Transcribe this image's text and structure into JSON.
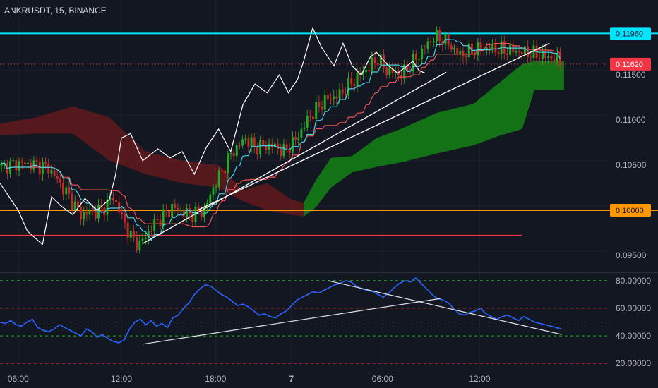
{
  "header": {
    "symbol": "ANKRUSDT",
    "interval": "15",
    "exchange": "BINANCE"
  },
  "chart_data": [
    {
      "type": "candlestick",
      "yticks": [
        "0.11500",
        "0.11000",
        "0.10500",
        "0.09500"
      ],
      "ylim": [
        0.0932,
        0.1233
      ],
      "xticks": [
        "06:00",
        "12:00",
        "18:00",
        "7",
        "06:00",
        "12:00"
      ],
      "price_labels": [
        {
          "text": "0.11960",
          "value": 0.1196,
          "color": "#00e5ff",
          "text_color": "#131722"
        },
        {
          "text": "0.11620",
          "value": 0.1162,
          "color": "#f23645",
          "text_color": "#ffffff"
        },
        {
          "text": "0.10000",
          "value": 0.1,
          "color": "#ff9800",
          "text_color": "#131722"
        }
      ],
      "levels": [
        {
          "name": "resistance",
          "value": 0.1196,
          "color": "#00e5ff"
        },
        {
          "name": "support",
          "value": 0.1,
          "color": "#ff9800"
        },
        {
          "name": "low-line",
          "value": 0.0972,
          "color": "#f23645",
          "x_end": 0.86
        }
      ],
      "anchors": [
        [
          0,
          0.1048
        ],
        [
          6,
          0.1052
        ],
        [
          12,
          0.105
        ],
        [
          16,
          0.1047
        ],
        [
          22,
          0.102
        ],
        [
          27,
          0.0995
        ],
        [
          34,
          0.1
        ],
        [
          38,
          0.1015
        ],
        [
          44,
          0.097
        ],
        [
          47,
          0.0962
        ],
        [
          52,
          0.0985
        ],
        [
          58,
          0.1003
        ],
        [
          64,
          0.0995
        ],
        [
          69,
          0.1
        ],
        [
          72,
          0.1025
        ],
        [
          78,
          0.1062
        ],
        [
          83,
          0.108
        ],
        [
          86,
          0.107
        ],
        [
          92,
          0.1072
        ],
        [
          96,
          0.1065
        ],
        [
          100,
          0.1078
        ],
        [
          105,
          0.1105
        ],
        [
          110,
          0.1122
        ],
        [
          115,
          0.1128
        ],
        [
          122,
          0.115
        ],
        [
          128,
          0.1168
        ],
        [
          131,
          0.1155
        ],
        [
          136,
          0.115
        ],
        [
          141,
          0.1168
        ],
        [
          147,
          0.1192
        ],
        [
          150,
          0.119
        ],
        [
          156,
          0.1172
        ],
        [
          163,
          0.118
        ],
        [
          170,
          0.1178
        ],
        [
          178,
          0.1175
        ],
        [
          186,
          0.117
        ],
        [
          190,
          0.1165
        ]
      ],
      "trendlines": [
        {
          "from": [
            0.235,
            0.0963
          ],
          "to": [
            0.735,
            0.1153
          ],
          "color": "#ffffff"
        },
        {
          "from": [
            0.325,
            0.1
          ],
          "to": [
            0.905,
            0.1185
          ],
          "color": "#ffffff"
        }
      ],
      "white_line": [
        [
          0,
          0.103
        ],
        [
          0.03,
          0.1
        ],
        [
          0.045,
          0.0977
        ],
        [
          0.07,
          0.0962
        ],
        [
          0.085,
          0.1015
        ],
        [
          0.1,
          0.1005
        ],
        [
          0.12,
          0.0995
        ],
        [
          0.14,
          0.1013
        ],
        [
          0.16,
          0.1
        ],
        [
          0.18,
          0.1012
        ],
        [
          0.19,
          0.1038
        ],
        [
          0.2,
          0.108
        ],
        [
          0.215,
          0.1085
        ],
        [
          0.235,
          0.1055
        ],
        [
          0.26,
          0.1068
        ],
        [
          0.28,
          0.1058
        ],
        [
          0.3,
          0.1065
        ],
        [
          0.32,
          0.104
        ],
        [
          0.34,
          0.107
        ],
        [
          0.36,
          0.109
        ],
        [
          0.38,
          0.1065
        ],
        [
          0.4,
          0.1117
        ],
        [
          0.42,
          0.114
        ],
        [
          0.44,
          0.113
        ],
        [
          0.46,
          0.115
        ],
        [
          0.475,
          0.113
        ],
        [
          0.49,
          0.1145
        ],
        [
          0.5,
          0.1165
        ],
        [
          0.515,
          0.1202
        ],
        [
          0.53,
          0.118
        ],
        [
          0.55,
          0.116
        ],
        [
          0.565,
          0.1185
        ],
        [
          0.58,
          0.116
        ],
        [
          0.595,
          0.115
        ],
        [
          0.61,
          0.117
        ],
        [
          0.62,
          0.1175
        ],
        [
          0.64,
          0.116
        ],
        [
          0.655,
          0.1152
        ],
        [
          0.68,
          0.1165
        ],
        [
          0.69,
          0.1155
        ],
        [
          0.7,
          0.1152
        ]
      ],
      "cloud": [
        [
          0.0,
          0.1096,
          0.1083
        ],
        [
          0.06,
          0.1103,
          0.1085
        ],
        [
          0.12,
          0.1115,
          0.1085
        ],
        [
          0.18,
          0.1103,
          0.1055
        ],
        [
          0.24,
          0.1065,
          0.104
        ],
        [
          0.3,
          0.1055,
          0.103
        ],
        [
          0.36,
          0.105,
          0.1025
        ],
        [
          0.4,
          0.1022,
          0.101
        ],
        [
          0.44,
          0.103,
          0.1
        ],
        [
          0.48,
          0.1012,
          0.0995
        ],
        [
          0.5,
          0.1008,
          0.0993
        ],
        [
          0.52,
          0.1033,
          0.1003
        ],
        [
          0.545,
          0.1058,
          0.1025
        ],
        [
          0.58,
          0.106,
          0.1042
        ],
        [
          0.62,
          0.108,
          0.1048
        ],
        [
          0.66,
          0.109,
          0.1053
        ],
        [
          0.72,
          0.1108,
          0.1063
        ],
        [
          0.78,
          0.1118,
          0.1072
        ],
        [
          0.82,
          0.114,
          0.1082
        ],
        [
          0.86,
          0.1162,
          0.109
        ],
        [
          0.88,
          0.1165,
          0.1133
        ],
        [
          0.929,
          0.1165,
          0.1133
        ]
      ]
    },
    {
      "type": "line",
      "series": [
        {
          "values": [
            50,
            49,
            51,
            48,
            47,
            50,
            52,
            46,
            44,
            43,
            45,
            48,
            46,
            44,
            42,
            40,
            45,
            43,
            39,
            41,
            38,
            36,
            35,
            37,
            45,
            50,
            52,
            48,
            51,
            47,
            49,
            46,
            53,
            55,
            60,
            64,
            70,
            74,
            77,
            76,
            73,
            70,
            68,
            65,
            62,
            63,
            61,
            58,
            55,
            56,
            54,
            53,
            56,
            58,
            62,
            66,
            68,
            70,
            72,
            71,
            73,
            75,
            77,
            78,
            80,
            79,
            76,
            74,
            73,
            72,
            70,
            68,
            71,
            75,
            78,
            80,
            79,
            82,
            78,
            74,
            70,
            67,
            66,
            64,
            60,
            56,
            55,
            57,
            58,
            60,
            56,
            54,
            52,
            54,
            55,
            53,
            51,
            54,
            52,
            50,
            49,
            48,
            47,
            46,
            45
          ]
        }
      ],
      "yticks": [
        "80.00000",
        "60.00000",
        "40.00000",
        "20.00000"
      ],
      "ylim": [
        15,
        85
      ],
      "levels": [
        {
          "value": 80,
          "color": "#22ab22",
          "dash": true
        },
        {
          "value": 60,
          "color": "#c02c2c",
          "dash": true
        },
        {
          "value": 50,
          "color": "#e0e3eb",
          "dash": true
        },
        {
          "value": 40,
          "color": "#22ab22",
          "dash": true
        },
        {
          "value": 20,
          "color": "#c02c2c",
          "dash": true
        }
      ],
      "trendlines": [
        {
          "from": [
            0.235,
            34
          ],
          "to": [
            0.62,
            60
          ]
        },
        {
          "from": [
            0.54,
            80
          ],
          "to": [
            0.925,
            41
          ]
        },
        {
          "from": [
            0.62,
            60
          ],
          "to": [
            0.725,
            67
          ]
        }
      ]
    }
  ]
}
